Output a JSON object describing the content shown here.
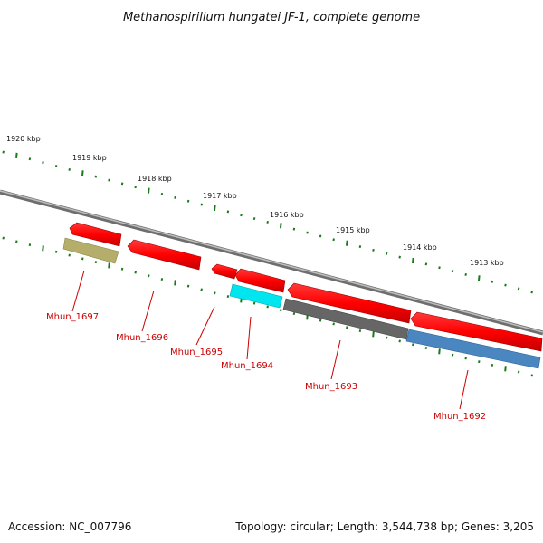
{
  "title": "Methanospirillum hungatei JF-1, complete genome",
  "footer": {
    "accession": "Accession: NC_007796",
    "topology": "Topology: circular; Length: 3,544,738 bp; Genes: 3,205"
  },
  "ruler_labels": [
    "1920 kbp",
    "1919 kbp",
    "1918 kbp",
    "1917 kbp",
    "1916 kbp",
    "1915 kbp",
    "1914 kbp",
    "1913 kbp"
  ],
  "genes": [
    {
      "name": "Mhun_1697",
      "cds_color": "#ff0000",
      "gene_color": "#b5ad6a"
    },
    {
      "name": "Mhun_1696",
      "cds_color": "#ff0000"
    },
    {
      "name": "Mhun_1695",
      "cds_color": "#ff0000"
    },
    {
      "name": "Mhun_1694",
      "cds_color": "#ff0000",
      "gene_color": "#00e5ee"
    },
    {
      "name": "Mhun_1693",
      "cds_color": "#ff0000",
      "gene_color": "#666666"
    },
    {
      "name": "Mhun_1692",
      "cds_color": "#ff0000",
      "gene_color": "#4a86c0"
    }
  ],
  "colors": {
    "backbone": "#888888",
    "tick": "#1a7a1a",
    "label": "#cc0000"
  }
}
